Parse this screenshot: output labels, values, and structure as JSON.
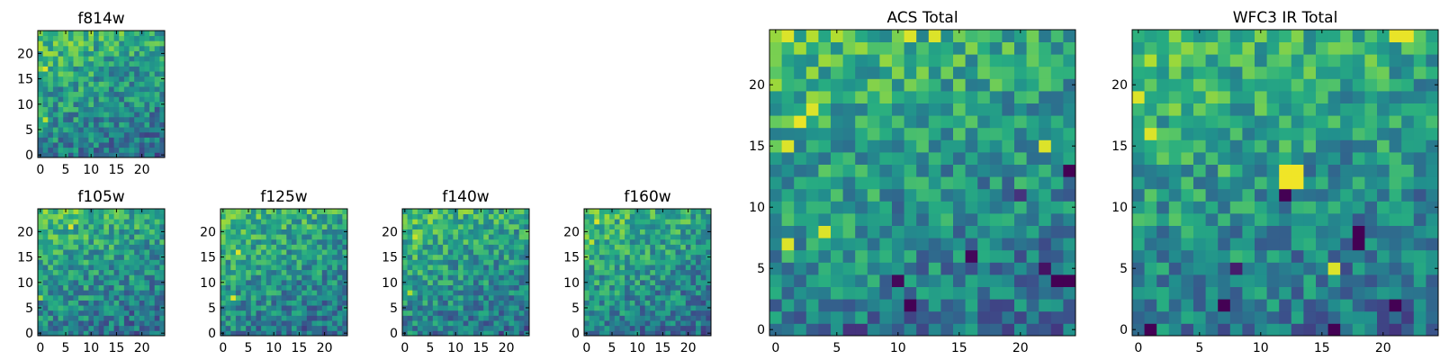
{
  "chart_data": [
    {
      "type": "heatmap",
      "title": "f814w",
      "grid_size": 25,
      "xticks": [
        0,
        5,
        10,
        15,
        20
      ],
      "yticks": [
        0,
        5,
        10,
        15,
        20
      ],
      "xlim": [
        -0.5,
        24.5
      ],
      "ylim": [
        -0.5,
        24.5
      ],
      "colormap": "viridis",
      "pattern_seed": 11,
      "features": [
        {
          "x": 1,
          "y": 17,
          "value": 0.95
        },
        {
          "x": 1,
          "y": 7,
          "value": 0.9
        }
      ]
    },
    {
      "type": "heatmap",
      "title": "f105w",
      "grid_size": 25,
      "xticks": [
        0,
        5,
        10,
        15,
        20
      ],
      "yticks": [
        0,
        5,
        10,
        15,
        20
      ],
      "xlim": [
        -0.5,
        24.5
      ],
      "ylim": [
        -0.5,
        24.5
      ],
      "colormap": "viridis",
      "pattern_seed": 23,
      "features": [
        {
          "x": 6,
          "y": 21,
          "value": 0.95
        },
        {
          "x": 0,
          "y": 7,
          "value": 0.85
        }
      ]
    },
    {
      "type": "heatmap",
      "title": "f125w",
      "grid_size": 25,
      "xticks": [
        0,
        5,
        10,
        15,
        20
      ],
      "yticks": [
        0,
        5,
        10,
        15,
        20
      ],
      "xlim": [
        -0.5,
        24.5
      ],
      "ylim": [
        -0.5,
        24.5
      ],
      "colormap": "viridis",
      "pattern_seed": 37,
      "features": [
        {
          "x": 3,
          "y": 16,
          "value": 0.95
        },
        {
          "x": 2,
          "y": 7,
          "value": 0.95
        }
      ]
    },
    {
      "type": "heatmap",
      "title": "f140w",
      "grid_size": 25,
      "xticks": [
        0,
        5,
        10,
        15,
        20
      ],
      "yticks": [
        0,
        5,
        10,
        15,
        20
      ],
      "xlim": [
        -0.5,
        24.5
      ],
      "ylim": [
        -0.5,
        24.5
      ],
      "colormap": "viridis",
      "pattern_seed": 41,
      "features": [
        {
          "x": 2,
          "y": 19,
          "value": 0.92
        },
        {
          "x": 1,
          "y": 8,
          "value": 0.88
        }
      ]
    },
    {
      "type": "heatmap",
      "title": "f160w",
      "grid_size": 25,
      "xticks": [
        0,
        5,
        10,
        15,
        20
      ],
      "yticks": [
        0,
        5,
        10,
        15,
        20
      ],
      "xlim": [
        -0.5,
        24.5
      ],
      "ylim": [
        -0.5,
        24.5
      ],
      "colormap": "viridis",
      "pattern_seed": 53,
      "features": [
        {
          "x": 2,
          "y": 22,
          "value": 0.95
        },
        {
          "x": 1,
          "y": 18,
          "value": 0.9
        }
      ]
    },
    {
      "type": "heatmap",
      "title": "ACS Total",
      "grid_size": 25,
      "xticks": [
        0,
        5,
        10,
        15,
        20
      ],
      "yticks": [
        0,
        5,
        10,
        15,
        20
      ],
      "xlim": [
        -0.5,
        24.5
      ],
      "ylim": [
        -0.5,
        24.5
      ],
      "colormap": "viridis",
      "pattern_seed": 67,
      "features": [
        {
          "x": 2,
          "y": 17,
          "value": 0.97
        },
        {
          "x": 3,
          "y": 18,
          "value": 0.95
        },
        {
          "x": 1,
          "y": 15,
          "value": 0.95
        },
        {
          "x": 1,
          "y": 7,
          "value": 0.95
        },
        {
          "x": 4,
          "y": 8,
          "value": 0.95
        },
        {
          "x": 11,
          "y": 24,
          "value": 0.95
        },
        {
          "x": 13,
          "y": 24,
          "value": 0.95
        },
        {
          "x": 1,
          "y": 24,
          "value": 0.95
        },
        {
          "x": 22,
          "y": 15,
          "value": 0.95
        },
        {
          "x": 24,
          "y": 13,
          "value": 0.0
        },
        {
          "x": 23,
          "y": 4,
          "value": 0.0
        },
        {
          "x": 24,
          "y": 4,
          "value": 0.0
        },
        {
          "x": 16,
          "y": 6,
          "value": 0.02
        },
        {
          "x": 10,
          "y": 4,
          "value": 0.02
        },
        {
          "x": 11,
          "y": 2,
          "value": 0.0
        },
        {
          "x": 7,
          "y": 0,
          "value": 0.15
        },
        {
          "x": 6,
          "y": 0,
          "value": 0.15
        },
        {
          "x": 22,
          "y": 5,
          "value": 0.05
        },
        {
          "x": 20,
          "y": 11,
          "value": 0.15
        }
      ]
    },
    {
      "type": "heatmap",
      "title": "WFC3 IR Total",
      "grid_size": 25,
      "xticks": [
        0,
        5,
        10,
        15,
        20
      ],
      "yticks": [
        0,
        5,
        10,
        15,
        20
      ],
      "xlim": [
        -0.5,
        24.5
      ],
      "ylim": [
        -0.5,
        24.5
      ],
      "colormap": "viridis",
      "pattern_seed": 79,
      "features": [
        {
          "x": 12,
          "y": 13,
          "value": 0.98
        },
        {
          "x": 13,
          "y": 13,
          "value": 0.98
        },
        {
          "x": 12,
          "y": 12,
          "value": 0.98
        },
        {
          "x": 13,
          "y": 12,
          "value": 0.98
        },
        {
          "x": 12,
          "y": 11,
          "value": 0.0
        },
        {
          "x": 21,
          "y": 24,
          "value": 0.97
        },
        {
          "x": 22,
          "y": 24,
          "value": 0.97
        },
        {
          "x": 1,
          "y": 16,
          "value": 0.95
        },
        {
          "x": 0,
          "y": 19,
          "value": 0.95
        },
        {
          "x": 16,
          "y": 5,
          "value": 0.95
        },
        {
          "x": 18,
          "y": 7,
          "value": 0.0
        },
        {
          "x": 18,
          "y": 8,
          "value": 0.0
        },
        {
          "x": 21,
          "y": 2,
          "value": 0.0
        },
        {
          "x": 16,
          "y": 0,
          "value": 0.0
        },
        {
          "x": 1,
          "y": 0,
          "value": 0.0
        },
        {
          "x": 7,
          "y": 2,
          "value": 0.0
        },
        {
          "x": 8,
          "y": 5,
          "value": 0.08
        }
      ]
    }
  ]
}
